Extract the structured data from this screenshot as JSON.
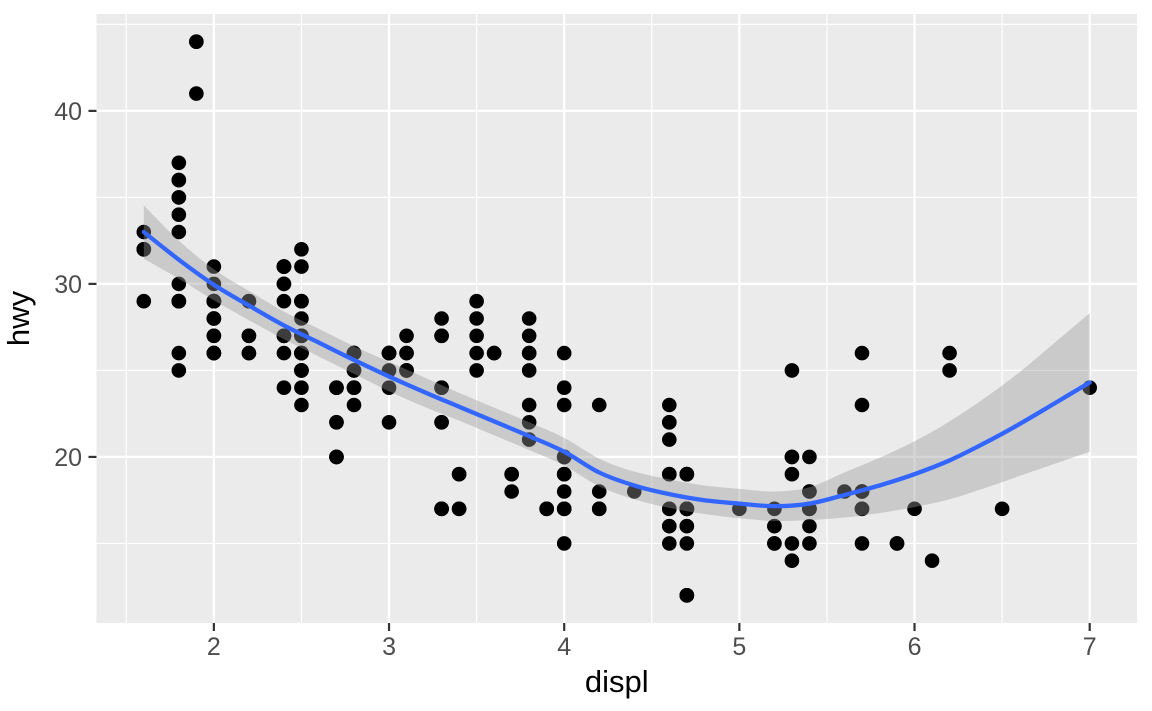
{
  "chart_data": {
    "type": "scatter",
    "title": "",
    "xlabel": "displ",
    "ylabel": "hwy",
    "xlim": [
      1.33,
      7.27
    ],
    "ylim": [
      10.4,
      45.6
    ],
    "x_ticks": [
      2,
      3,
      4,
      5,
      6,
      7
    ],
    "y_ticks": [
      20,
      30,
      40
    ],
    "x_minor_ticks": [
      1.5,
      2.5,
      3.5,
      4.5,
      5.5,
      6.5
    ],
    "y_minor_ticks": [
      15,
      25,
      35,
      45
    ],
    "grid": true,
    "legend_position": "none",
    "points": [
      [
        1.8,
        29
      ],
      [
        1.8,
        29
      ],
      [
        2.0,
        31
      ],
      [
        2.0,
        30
      ],
      [
        2.8,
        26
      ],
      [
        2.8,
        26
      ],
      [
        3.1,
        27
      ],
      [
        1.8,
        26
      ],
      [
        1.8,
        25
      ],
      [
        2.0,
        28
      ],
      [
        2.0,
        27
      ],
      [
        2.8,
        25
      ],
      [
        2.8,
        25
      ],
      [
        3.1,
        25
      ],
      [
        3.1,
        25
      ],
      [
        2.8,
        24
      ],
      [
        3.1,
        25
      ],
      [
        4.2,
        23
      ],
      [
        5.3,
        20
      ],
      [
        5.3,
        15
      ],
      [
        5.3,
        20
      ],
      [
        5.7,
        17
      ],
      [
        6.0,
        17
      ],
      [
        5.7,
        26
      ],
      [
        5.7,
        23
      ],
      [
        6.2,
        26
      ],
      [
        6.2,
        25
      ],
      [
        7.0,
        24
      ],
      [
        5.3,
        14
      ],
      [
        5.3,
        19
      ],
      [
        5.7,
        15
      ],
      [
        6.5,
        17
      ],
      [
        2.4,
        27
      ],
      [
        2.4,
        30
      ],
      [
        3.1,
        26
      ],
      [
        3.5,
        29
      ],
      [
        3.6,
        26
      ],
      [
        2.4,
        24
      ],
      [
        3.0,
        24
      ],
      [
        3.3,
        22
      ],
      [
        3.3,
        22
      ],
      [
        3.3,
        24
      ],
      [
        3.3,
        24
      ],
      [
        3.3,
        17
      ],
      [
        3.8,
        22
      ],
      [
        3.8,
        21
      ],
      [
        3.8,
        23
      ],
      [
        4.0,
        23
      ],
      [
        3.7,
        19
      ],
      [
        3.7,
        18
      ],
      [
        3.9,
        17
      ],
      [
        3.9,
        17
      ],
      [
        4.7,
        19
      ],
      [
        4.7,
        19
      ],
      [
        4.7,
        19
      ],
      [
        5.2,
        17
      ],
      [
        5.2,
        15
      ],
      [
        3.9,
        17
      ],
      [
        4.7,
        17
      ],
      [
        4.7,
        12
      ],
      [
        4.7,
        17
      ],
      [
        5.2,
        16
      ],
      [
        5.7,
        18
      ],
      [
        5.9,
        15
      ],
      [
        4.7,
        16
      ],
      [
        4.7,
        12
      ],
      [
        4.7,
        17
      ],
      [
        4.7,
        17
      ],
      [
        4.7,
        16
      ],
      [
        4.7,
        12
      ],
      [
        5.2,
        15
      ],
      [
        5.2,
        16
      ],
      [
        5.7,
        17
      ],
      [
        5.9,
        15
      ],
      [
        4.6,
        17
      ],
      [
        5.4,
        17
      ],
      [
        5.4,
        18
      ],
      [
        4.0,
        17
      ],
      [
        4.0,
        19
      ],
      [
        4.0,
        17
      ],
      [
        4.0,
        19
      ],
      [
        4.6,
        19
      ],
      [
        4.2,
        17
      ],
      [
        4.2,
        17
      ],
      [
        4.6,
        16
      ],
      [
        4.6,
        16
      ],
      [
        4.6,
        17
      ],
      [
        5.4,
        15
      ],
      [
        5.4,
        17
      ],
      [
        3.8,
        26
      ],
      [
        3.8,
        25
      ],
      [
        4.0,
        26
      ],
      [
        4.0,
        24
      ],
      [
        4.6,
        21
      ],
      [
        4.6,
        22
      ],
      [
        4.6,
        23
      ],
      [
        4.6,
        22
      ],
      [
        5.4,
        20
      ],
      [
        1.6,
        33
      ],
      [
        1.6,
        32
      ],
      [
        1.6,
        32
      ],
      [
        1.6,
        29
      ],
      [
        1.6,
        32
      ],
      [
        1.8,
        34
      ],
      [
        1.8,
        36
      ],
      [
        1.8,
        36
      ],
      [
        2.0,
        29
      ],
      [
        2.4,
        26
      ],
      [
        2.4,
        27
      ],
      [
        2.4,
        30
      ],
      [
        2.4,
        31
      ],
      [
        2.5,
        26
      ],
      [
        2.5,
        26
      ],
      [
        3.3,
        28
      ],
      [
        2.0,
        26
      ],
      [
        2.0,
        29
      ],
      [
        2.0,
        28
      ],
      [
        2.0,
        27
      ],
      [
        2.7,
        24
      ],
      [
        2.7,
        24
      ],
      [
        2.7,
        24
      ],
      [
        3.0,
        22
      ],
      [
        3.7,
        19
      ],
      [
        4.0,
        20
      ],
      [
        4.7,
        17
      ],
      [
        4.7,
        12
      ],
      [
        4.7,
        19
      ],
      [
        5.7,
        18
      ],
      [
        6.1,
        14
      ],
      [
        4.0,
        15
      ],
      [
        4.2,
        18
      ],
      [
        4.4,
        18
      ],
      [
        4.6,
        15
      ],
      [
        5.4,
        17
      ],
      [
        5.4,
        16
      ],
      [
        5.4,
        18
      ],
      [
        4.0,
        17
      ],
      [
        4.0,
        19
      ],
      [
        4.6,
        19
      ],
      [
        5.0,
        17
      ],
      [
        2.4,
        29
      ],
      [
        2.4,
        27
      ],
      [
        2.5,
        31
      ],
      [
        2.5,
        32
      ],
      [
        3.5,
        27
      ],
      [
        3.5,
        26
      ],
      [
        3.0,
        26
      ],
      [
        3.0,
        25
      ],
      [
        3.5,
        25
      ],
      [
        3.3,
        17
      ],
      [
        3.3,
        17
      ],
      [
        4.0,
        20
      ],
      [
        5.6,
        18
      ],
      [
        3.1,
        26
      ],
      [
        3.8,
        26
      ],
      [
        3.8,
        27
      ],
      [
        3.8,
        28
      ],
      [
        5.3,
        25
      ],
      [
        2.5,
        25
      ],
      [
        2.5,
        24
      ],
      [
        2.5,
        27
      ],
      [
        2.5,
        25
      ],
      [
        2.5,
        26
      ],
      [
        2.5,
        23
      ],
      [
        2.2,
        26
      ],
      [
        2.2,
        26
      ],
      [
        2.5,
        26
      ],
      [
        2.5,
        26
      ],
      [
        2.5,
        25
      ],
      [
        2.5,
        27
      ],
      [
        2.5,
        25
      ],
      [
        2.5,
        27
      ],
      [
        2.7,
        20
      ],
      [
        2.7,
        20
      ],
      [
        3.4,
        19
      ],
      [
        3.4,
        17
      ],
      [
        4.0,
        20
      ],
      [
        4.7,
        17
      ],
      [
        2.2,
        29
      ],
      [
        2.2,
        27
      ],
      [
        2.4,
        31
      ],
      [
        2.4,
        31
      ],
      [
        3.0,
        26
      ],
      [
        3.0,
        26
      ],
      [
        3.5,
        28
      ],
      [
        2.2,
        27
      ],
      [
        2.2,
        29
      ],
      [
        2.4,
        31
      ],
      [
        2.4,
        31
      ],
      [
        3.0,
        26
      ],
      [
        3.3,
        27
      ],
      [
        1.8,
        30
      ],
      [
        1.8,
        33
      ],
      [
        1.8,
        35
      ],
      [
        1.8,
        37
      ],
      [
        1.8,
        35
      ],
      [
        4.7,
        15
      ],
      [
        5.7,
        18
      ],
      [
        3.0,
        26
      ],
      [
        3.3,
        27
      ],
      [
        2.7,
        22
      ],
      [
        2.7,
        20
      ],
      [
        2.7,
        22
      ],
      [
        3.4,
        17
      ],
      [
        3.4,
        19
      ],
      [
        4.0,
        18
      ],
      [
        4.0,
        20
      ],
      [
        2.0,
        29
      ],
      [
        2.0,
        26
      ],
      [
        2.0,
        29
      ],
      [
        2.0,
        29
      ],
      [
        2.8,
        24
      ],
      [
        1.9,
        44
      ],
      [
        2.0,
        29
      ],
      [
        2.0,
        26
      ],
      [
        2.0,
        29
      ],
      [
        2.0,
        29
      ],
      [
        2.5,
        29
      ],
      [
        2.5,
        29
      ],
      [
        2.8,
        23
      ],
      [
        2.8,
        24
      ],
      [
        1.9,
        44
      ],
      [
        1.9,
        41
      ],
      [
        2.0,
        29
      ],
      [
        2.0,
        26
      ],
      [
        2.5,
        28
      ],
      [
        2.5,
        29
      ],
      [
        1.8,
        29
      ],
      [
        1.8,
        29
      ],
      [
        2.0,
        28
      ],
      [
        2.0,
        29
      ],
      [
        2.8,
        26
      ],
      [
        2.8,
        26
      ],
      [
        3.6,
        26
      ]
    ],
    "smooth": {
      "name": "loess fit with 95% confidence band",
      "x": [
        1.6,
        1.8,
        2.0,
        2.2,
        2.4,
        2.6,
        2.8,
        3.0,
        3.2,
        3.4,
        3.6,
        3.8,
        4.0,
        4.2,
        4.4,
        4.6,
        4.8,
        5.0,
        5.2,
        5.4,
        5.6,
        5.8,
        6.0,
        6.2,
        6.4,
        6.6,
        6.8,
        7.0
      ],
      "y": [
        33.0,
        31.4,
        29.95,
        28.75,
        27.6,
        26.6,
        25.6,
        24.65,
        23.75,
        22.9,
        22.05,
        21.2,
        20.3,
        19.1,
        18.35,
        17.85,
        17.5,
        17.3,
        17.15,
        17.3,
        17.8,
        18.35,
        19.0,
        19.8,
        20.8,
        21.9,
        23.1,
        24.3
      ],
      "upper": [
        34.55,
        32.5,
        30.85,
        29.6,
        28.4,
        27.4,
        26.4,
        25.5,
        24.6,
        23.7,
        22.85,
        22.0,
        21.1,
        19.9,
        19.15,
        18.7,
        18.35,
        18.15,
        18.0,
        18.25,
        19.1,
        19.95,
        20.9,
        22.05,
        23.4,
        24.9,
        26.6,
        28.3
      ],
      "lower": [
        31.45,
        30.3,
        29.05,
        27.9,
        26.8,
        25.8,
        24.8,
        23.8,
        22.9,
        22.1,
        21.25,
        20.4,
        19.5,
        18.3,
        17.55,
        17.05,
        16.7,
        16.45,
        16.3,
        16.35,
        16.5,
        16.75,
        17.1,
        17.55,
        18.2,
        18.9,
        19.6,
        20.3
      ]
    }
  },
  "style": {
    "panel_bg": "#EBEBEB",
    "grid_color": "#FFFFFF",
    "point_color": "#000000",
    "line_color": "#3366FF",
    "band_color": "#999999",
    "band_alpha": 0.4,
    "tick_mark_color": "#333333",
    "tick_label_color": "#4D4D4D",
    "axis_title_color": "#000000"
  }
}
